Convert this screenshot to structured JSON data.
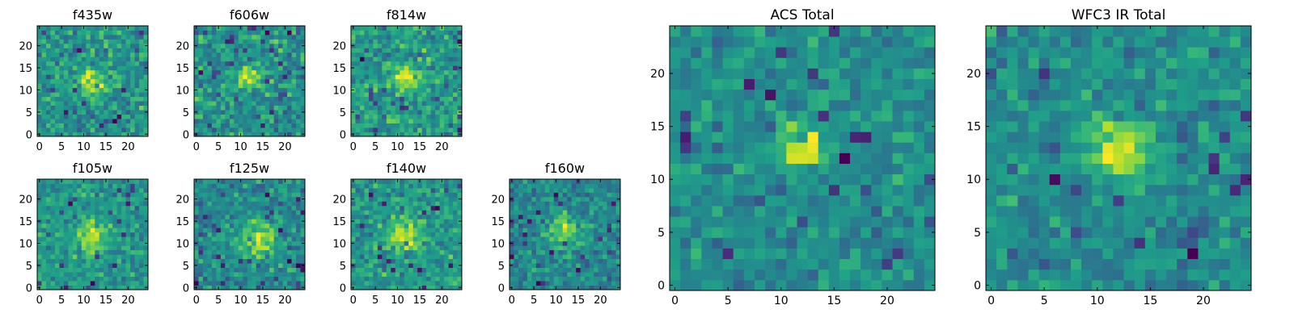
{
  "colormap": "viridis",
  "chart_data": [
    {
      "type": "heatmap",
      "title": "f435w",
      "size": [
        25,
        25
      ],
      "seed": 11,
      "blob_center": [
        12,
        12
      ],
      "blob_sigma": 1.8,
      "blob_strength": 0.65,
      "noise": 0.55,
      "xticks": [
        0,
        5,
        10,
        15,
        20
      ],
      "yticks": [
        0,
        5,
        10,
        15,
        20
      ],
      "xlim": [
        -0.5,
        24.5
      ],
      "ylim": [
        -0.5,
        24.5
      ]
    },
    {
      "type": "heatmap",
      "title": "f606w",
      "size": [
        25,
        25
      ],
      "seed": 23,
      "blob_center": [
        12,
        13
      ],
      "blob_sigma": 1.8,
      "blob_strength": 0.6,
      "noise": 0.55,
      "xticks": [
        0,
        5,
        10,
        15,
        20
      ],
      "yticks": [
        0,
        5,
        10,
        15,
        20
      ],
      "xlim": [
        -0.5,
        24.5
      ],
      "ylim": [
        -0.5,
        24.5
      ]
    },
    {
      "type": "heatmap",
      "title": "f814w",
      "size": [
        25,
        25
      ],
      "seed": 37,
      "blob_center": [
        12,
        13
      ],
      "blob_sigma": 1.8,
      "blob_strength": 0.55,
      "noise": 0.55,
      "xticks": [
        0,
        5,
        10,
        15,
        20
      ],
      "yticks": [
        0,
        5,
        10,
        15,
        20
      ],
      "xlim": [
        -0.5,
        24.5
      ],
      "ylim": [
        -0.5,
        24.5
      ]
    },
    {
      "type": "heatmap",
      "title": "f105w",
      "size": [
        25,
        25
      ],
      "seed": 41,
      "blob_center": [
        12,
        12
      ],
      "blob_sigma": 2.5,
      "blob_strength": 0.5,
      "noise": 0.45,
      "xticks": [
        0,
        5,
        10,
        15,
        20
      ],
      "yticks": [
        0,
        5,
        10,
        15,
        20
      ],
      "xlim": [
        -0.5,
        24.5
      ],
      "ylim": [
        -0.5,
        24.5
      ]
    },
    {
      "type": "heatmap",
      "title": "f125w",
      "size": [
        25,
        25
      ],
      "seed": 53,
      "blob_center": [
        14,
        11
      ],
      "blob_sigma": 3.0,
      "blob_strength": 0.45,
      "noise": 0.45,
      "xticks": [
        0,
        5,
        10,
        15,
        20
      ],
      "yticks": [
        0,
        5,
        10,
        15,
        20
      ],
      "xlim": [
        -0.5,
        24.5
      ],
      "ylim": [
        -0.5,
        24.5
      ]
    },
    {
      "type": "heatmap",
      "title": "f140w",
      "size": [
        25,
        25
      ],
      "seed": 67,
      "blob_center": [
        12,
        12
      ],
      "blob_sigma": 2.5,
      "blob_strength": 0.5,
      "noise": 0.45,
      "xticks": [
        0,
        5,
        10,
        15,
        20
      ],
      "yticks": [
        0,
        5,
        10,
        15,
        20
      ],
      "xlim": [
        -0.5,
        24.5
      ],
      "ylim": [
        -0.5,
        24.5
      ]
    },
    {
      "type": "heatmap",
      "title": "f160w",
      "size": [
        25,
        25
      ],
      "seed": 79,
      "blob_center": [
        12,
        13
      ],
      "blob_sigma": 2.5,
      "blob_strength": 0.5,
      "noise": 0.45,
      "xticks": [
        0,
        5,
        10,
        15,
        20
      ],
      "yticks": [
        0,
        5,
        10,
        15,
        20
      ],
      "xlim": [
        -0.5,
        24.5
      ],
      "ylim": [
        -0.5,
        24.5
      ]
    },
    {
      "type": "heatmap",
      "title": "ACS Total",
      "size": [
        25,
        25
      ],
      "seed": 97,
      "blob_center": [
        12,
        13
      ],
      "blob_sigma": 1.6,
      "blob_strength": 0.7,
      "noise": 0.45,
      "xticks": [
        0,
        5,
        10,
        15,
        20
      ],
      "yticks": [
        0,
        5,
        10,
        15,
        20
      ],
      "xlim": [
        -0.5,
        24.5
      ],
      "ylim": [
        -0.5,
        24.5
      ]
    },
    {
      "type": "heatmap",
      "title": "WFC3 IR Total",
      "size": [
        25,
        25
      ],
      "seed": 113,
      "blob_center": [
        12,
        13
      ],
      "blob_sigma": 2.0,
      "blob_strength": 0.7,
      "noise": 0.45,
      "xticks": [
        0,
        5,
        10,
        15,
        20
      ],
      "yticks": [
        0,
        5,
        10,
        15,
        20
      ],
      "xlim": [
        -0.5,
        24.5
      ],
      "ylim": [
        -0.5,
        24.5
      ]
    }
  ]
}
